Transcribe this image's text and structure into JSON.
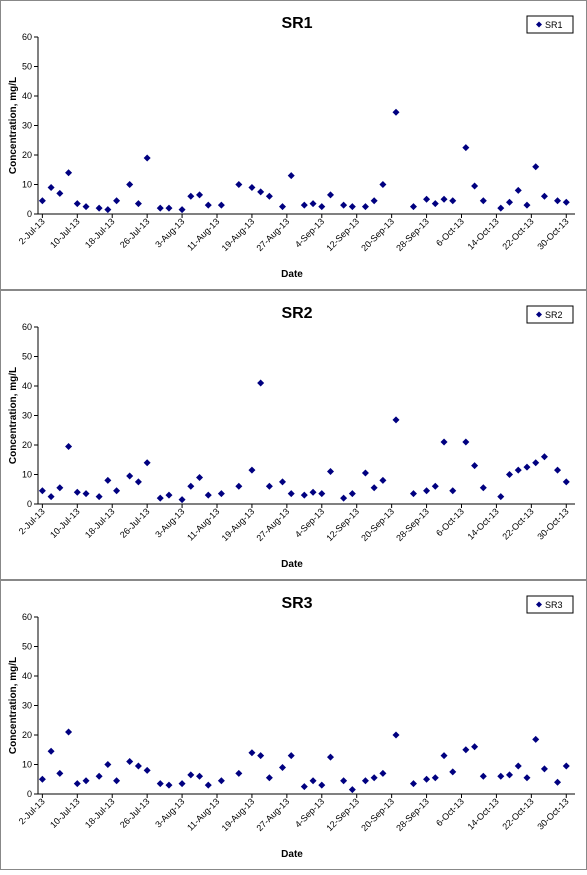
{
  "chart_data": [
    {
      "type": "scatter",
      "title": "SR1",
      "x_label": "Date",
      "y_label": "Concentration, mg/L",
      "legend": "top-right",
      "x": [
        "2013-07-02",
        "2013-07-04",
        "2013-07-06",
        "2013-07-08",
        "2013-07-10",
        "2013-07-12",
        "2013-07-15",
        "2013-07-17",
        "2013-07-19",
        "2013-07-22",
        "2013-07-24",
        "2013-07-26",
        "2013-07-29",
        "2013-07-31",
        "2013-08-03",
        "2013-08-05",
        "2013-08-07",
        "2013-08-09",
        "2013-08-12",
        "2013-08-16",
        "2013-08-19",
        "2013-08-21",
        "2013-08-23",
        "2013-08-26",
        "2013-08-28",
        "2013-08-31",
        "2013-09-02",
        "2013-09-04",
        "2013-09-06",
        "2013-09-09",
        "2013-09-11",
        "2013-09-14",
        "2013-09-16",
        "2013-09-18",
        "2013-09-21",
        "2013-09-25",
        "2013-09-28",
        "2013-09-30",
        "2013-10-02",
        "2013-10-04",
        "2013-10-07",
        "2013-10-09",
        "2013-10-11",
        "2013-10-15",
        "2013-10-17",
        "2013-10-19",
        "2013-10-21",
        "2013-10-23",
        "2013-10-25",
        "2013-10-28",
        "2013-10-30"
      ],
      "series": [
        {
          "name": "SR1",
          "color": "#000080",
          "values": [
            4.5,
            9,
            7,
            14,
            3.5,
            2.5,
            2,
            1.5,
            4.5,
            10,
            3.5,
            19,
            2,
            2,
            1.5,
            6,
            6.5,
            3,
            3,
            10,
            9,
            7.5,
            6,
            2.5,
            13,
            3,
            3.5,
            2.5,
            6.5,
            3,
            2.5,
            2.5,
            4.5,
            10,
            34.5,
            2.5,
            5,
            3.5,
            5,
            4.5,
            22.5,
            9.5,
            4.5,
            2,
            4,
            8,
            3,
            16,
            6,
            4.5,
            4
          ]
        }
      ],
      "xlim": [
        "2013-07-01",
        "2013-11-01"
      ],
      "ylim": [
        0,
        60
      ],
      "yticks": [
        0,
        10,
        20,
        30,
        40,
        50,
        60
      ],
      "xticks": [
        {
          "value": "2013-07-02",
          "label": "2-Jul-13"
        },
        {
          "value": "2013-07-10",
          "label": "10-Jul-13"
        },
        {
          "value": "2013-07-18",
          "label": "18-Jul-13"
        },
        {
          "value": "2013-07-26",
          "label": "26-Jul-13"
        },
        {
          "value": "2013-08-03",
          "label": "3-Aug-13"
        },
        {
          "value": "2013-08-11",
          "label": "11-Aug-13"
        },
        {
          "value": "2013-08-19",
          "label": "19-Aug-13"
        },
        {
          "value": "2013-08-27",
          "label": "27-Aug-13"
        },
        {
          "value": "2013-09-04",
          "label": "4-Sep-13"
        },
        {
          "value": "2013-09-12",
          "label": "12-Sep-13"
        },
        {
          "value": "2013-09-20",
          "label": "20-Sep-13"
        },
        {
          "value": "2013-09-28",
          "label": "28-Sep-13"
        },
        {
          "value": "2013-10-06",
          "label": "6-Oct-13"
        },
        {
          "value": "2013-10-14",
          "label": "14-Oct-13"
        },
        {
          "value": "2013-10-22",
          "label": "22-Oct-13"
        },
        {
          "value": "2013-10-30",
          "label": "30-Oct-13"
        }
      ]
    },
    {
      "type": "scatter",
      "title": "SR2",
      "x_label": "Date",
      "y_label": "Concentration, mg/L",
      "legend": "top-right",
      "x": [
        "2013-07-02",
        "2013-07-04",
        "2013-07-06",
        "2013-07-08",
        "2013-07-10",
        "2013-07-12",
        "2013-07-15",
        "2013-07-17",
        "2013-07-19",
        "2013-07-22",
        "2013-07-24",
        "2013-07-26",
        "2013-07-29",
        "2013-07-31",
        "2013-08-03",
        "2013-08-05",
        "2013-08-07",
        "2013-08-09",
        "2013-08-12",
        "2013-08-16",
        "2013-08-19",
        "2013-08-21",
        "2013-08-23",
        "2013-08-26",
        "2013-08-28",
        "2013-08-31",
        "2013-09-02",
        "2013-09-04",
        "2013-09-06",
        "2013-09-09",
        "2013-09-11",
        "2013-09-14",
        "2013-09-16",
        "2013-09-18",
        "2013-09-21",
        "2013-09-25",
        "2013-09-28",
        "2013-09-30",
        "2013-10-02",
        "2013-10-04",
        "2013-10-07",
        "2013-10-09",
        "2013-10-11",
        "2013-10-15",
        "2013-10-17",
        "2013-10-19",
        "2013-10-21",
        "2013-10-23",
        "2013-10-25",
        "2013-10-28",
        "2013-10-30"
      ],
      "series": [
        {
          "name": "SR2",
          "color": "#000080",
          "values": [
            4.5,
            2.5,
            5.5,
            19.5,
            4,
            3.5,
            2.5,
            8,
            4.5,
            9.5,
            7.5,
            14,
            2,
            3,
            1.5,
            6,
            9,
            3,
            3.5,
            6,
            11.5,
            41,
            6,
            7.5,
            3.5,
            3,
            4,
            3.5,
            11,
            2,
            3.5,
            10.5,
            5.5,
            8,
            28.5,
            3.5,
            4.5,
            6,
            21,
            4.5,
            21,
            13,
            5.5,
            2.5,
            10,
            11.5,
            12.5,
            14,
            16,
            11.5,
            7.5
          ]
        }
      ],
      "xlim": [
        "2013-07-01",
        "2013-11-01"
      ],
      "ylim": [
        0,
        60
      ],
      "yticks": [
        0,
        10,
        20,
        30,
        40,
        50,
        60
      ],
      "xticks": [
        {
          "value": "2013-07-02",
          "label": "2-Jul-13"
        },
        {
          "value": "2013-07-10",
          "label": "10-Jul-13"
        },
        {
          "value": "2013-07-18",
          "label": "18-Jul-13"
        },
        {
          "value": "2013-07-26",
          "label": "26-Jul-13"
        },
        {
          "value": "2013-08-03",
          "label": "3-Aug-13"
        },
        {
          "value": "2013-08-11",
          "label": "11-Aug-13"
        },
        {
          "value": "2013-08-19",
          "label": "19-Aug-13"
        },
        {
          "value": "2013-08-27",
          "label": "27-Aug-13"
        },
        {
          "value": "2013-09-04",
          "label": "4-Sep-13"
        },
        {
          "value": "2013-09-12",
          "label": "12-Sep-13"
        },
        {
          "value": "2013-09-20",
          "label": "20-Sep-13"
        },
        {
          "value": "2013-09-28",
          "label": "28-Sep-13"
        },
        {
          "value": "2013-10-06",
          "label": "6-Oct-13"
        },
        {
          "value": "2013-10-14",
          "label": "14-Oct-13"
        },
        {
          "value": "2013-10-22",
          "label": "22-Oct-13"
        },
        {
          "value": "2013-10-30",
          "label": "30-Oct-13"
        }
      ]
    },
    {
      "type": "scatter",
      "title": "SR3",
      "x_label": "Date",
      "y_label": "Concentration, mg/L",
      "legend": "top-right",
      "x": [
        "2013-07-02",
        "2013-07-04",
        "2013-07-06",
        "2013-07-08",
        "2013-07-10",
        "2013-07-12",
        "2013-07-15",
        "2013-07-17",
        "2013-07-19",
        "2013-07-22",
        "2013-07-24",
        "2013-07-26",
        "2013-07-29",
        "2013-07-31",
        "2013-08-03",
        "2013-08-05",
        "2013-08-07",
        "2013-08-09",
        "2013-08-12",
        "2013-08-16",
        "2013-08-19",
        "2013-08-21",
        "2013-08-23",
        "2013-08-26",
        "2013-08-28",
        "2013-08-31",
        "2013-09-02",
        "2013-09-04",
        "2013-09-06",
        "2013-09-09",
        "2013-09-11",
        "2013-09-14",
        "2013-09-16",
        "2013-09-18",
        "2013-09-21",
        "2013-09-25",
        "2013-09-28",
        "2013-09-30",
        "2013-10-02",
        "2013-10-04",
        "2013-10-07",
        "2013-10-09",
        "2013-10-11",
        "2013-10-15",
        "2013-10-17",
        "2013-10-19",
        "2013-10-21",
        "2013-10-23",
        "2013-10-25",
        "2013-10-28",
        "2013-10-30"
      ],
      "series": [
        {
          "name": "SR3",
          "color": "#000080",
          "values": [
            5,
            14.5,
            7,
            21,
            3.5,
            4.5,
            6,
            10,
            4.5,
            11,
            9.5,
            8,
            3.5,
            3,
            3.5,
            6.5,
            6,
            3,
            4.5,
            7,
            14,
            13,
            5.5,
            9,
            13,
            2.5,
            4.5,
            3,
            12.5,
            4.5,
            1.5,
            4.5,
            5.5,
            7,
            20,
            3.5,
            5,
            5.5,
            13,
            7.5,
            15,
            16,
            6,
            6,
            6.5,
            9.5,
            5.5,
            18.5,
            8.5,
            4,
            9.5
          ]
        }
      ],
      "xlim": [
        "2013-07-01",
        "2013-11-01"
      ],
      "ylim": [
        0,
        60
      ],
      "yticks": [
        0,
        10,
        20,
        30,
        40,
        50,
        60
      ],
      "xticks": [
        {
          "value": "2013-07-02",
          "label": "2-Jul-13"
        },
        {
          "value": "2013-07-10",
          "label": "10-Jul-13"
        },
        {
          "value": "2013-07-18",
          "label": "18-Jul-13"
        },
        {
          "value": "2013-07-26",
          "label": "26-Jul-13"
        },
        {
          "value": "2013-08-03",
          "label": "3-Aug-13"
        },
        {
          "value": "2013-08-11",
          "label": "11-Aug-13"
        },
        {
          "value": "2013-08-19",
          "label": "19-Aug-13"
        },
        {
          "value": "2013-08-27",
          "label": "27-Aug-13"
        },
        {
          "value": "2013-09-04",
          "label": "4-Sep-13"
        },
        {
          "value": "2013-09-12",
          "label": "12-Sep-13"
        },
        {
          "value": "2013-09-20",
          "label": "20-Sep-13"
        },
        {
          "value": "2013-09-28",
          "label": "28-Sep-13"
        },
        {
          "value": "2013-10-06",
          "label": "6-Oct-13"
        },
        {
          "value": "2013-10-14",
          "label": "14-Oct-13"
        },
        {
          "value": "2013-10-22",
          "label": "22-Oct-13"
        },
        {
          "value": "2013-10-30",
          "label": "30-Oct-13"
        }
      ]
    }
  ]
}
